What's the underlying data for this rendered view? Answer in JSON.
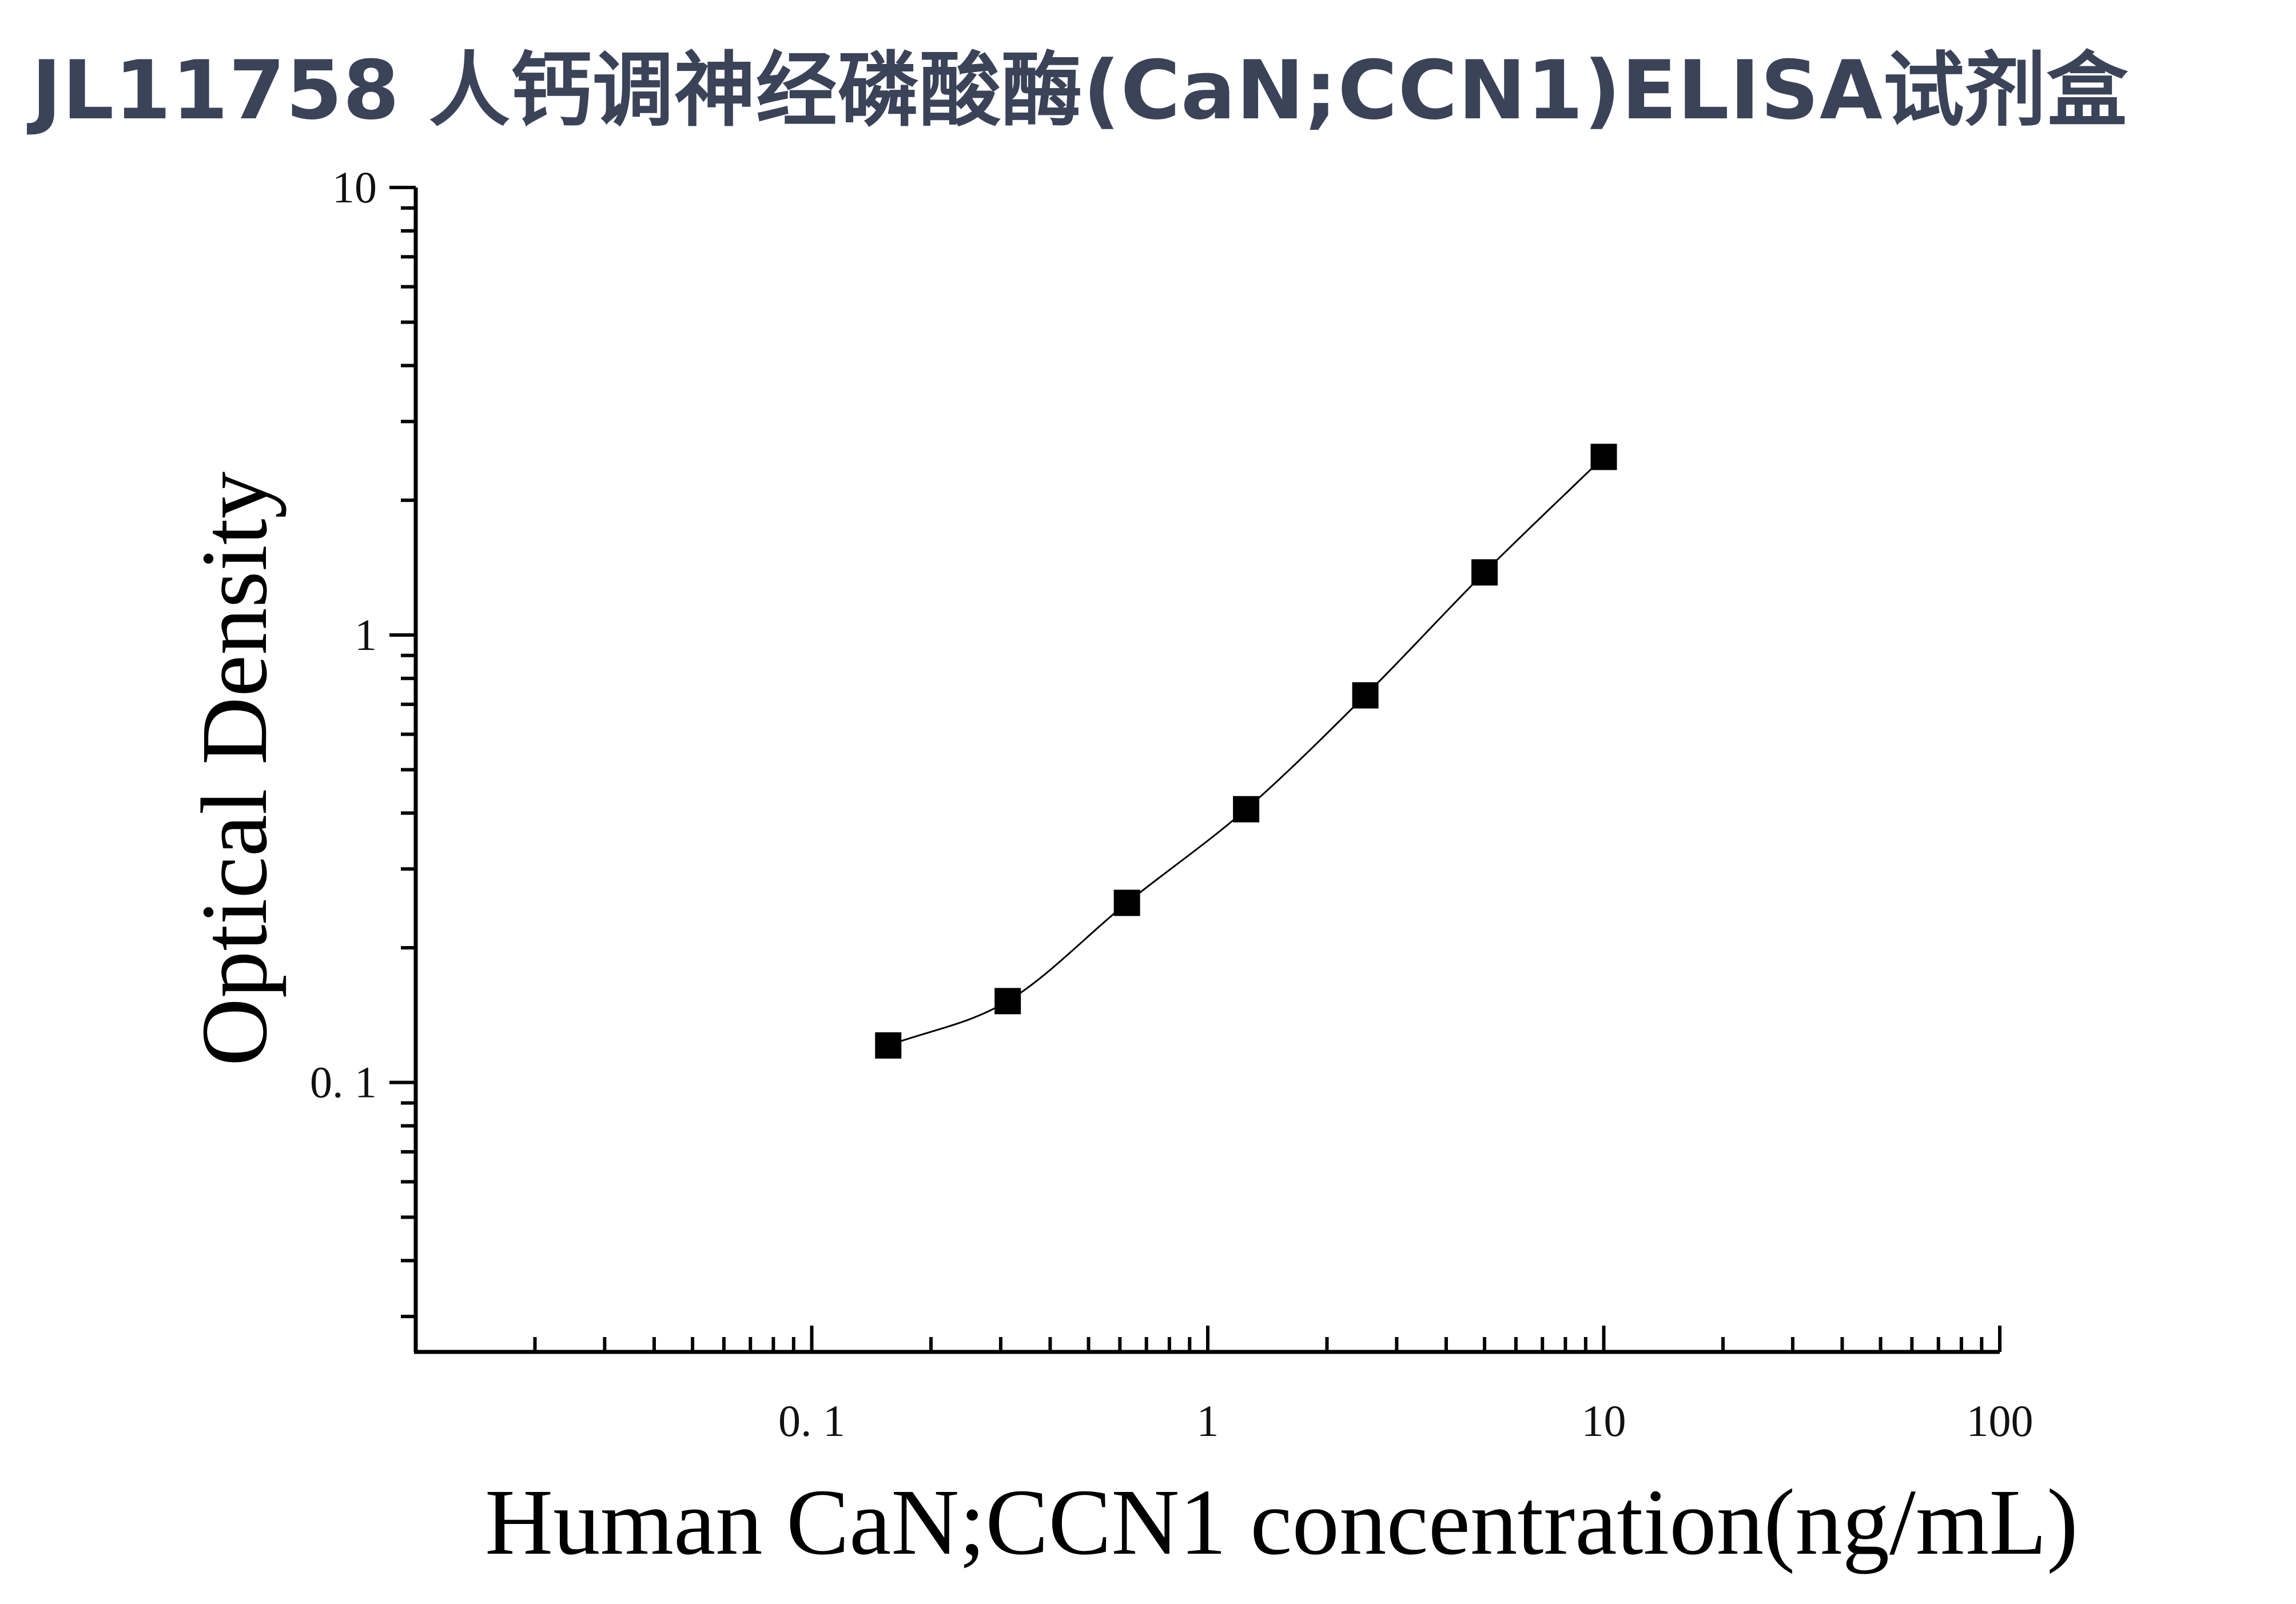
{
  "chart_data": {
    "type": "scatter",
    "title": "JL11758 人钙调神经磷酸酶(CaN;CCN1)ELISA试剂盒",
    "xlabel": "Human CaN;CCN1 concentration(ng/mL)",
    "ylabel": "Optical Density",
    "x_scale": "log",
    "y_scale": "log",
    "xlim": [
      0.01,
      100
    ],
    "ylim": [
      0.025,
      10
    ],
    "x_ticks": [
      0.1,
      1,
      10,
      100
    ],
    "x_tick_labels": [
      "0. 1",
      "1",
      "10",
      "100"
    ],
    "y_ticks": [
      0.1,
      1,
      10
    ],
    "y_tick_labels": [
      "0. 1",
      "1",
      "10"
    ],
    "grid": false,
    "series": [
      {
        "marker": "square",
        "fit_line": true,
        "x": [
          0.156,
          0.3125,
          0.625,
          1.25,
          2.5,
          5,
          10
        ],
        "y": [
          0.121,
          0.152,
          0.252,
          0.408,
          0.733,
          1.38,
          2.5
        ]
      }
    ],
    "colors": {
      "marker": "#000000",
      "line": "#000000",
      "axis": "#000000",
      "title": "#3a4358"
    }
  }
}
